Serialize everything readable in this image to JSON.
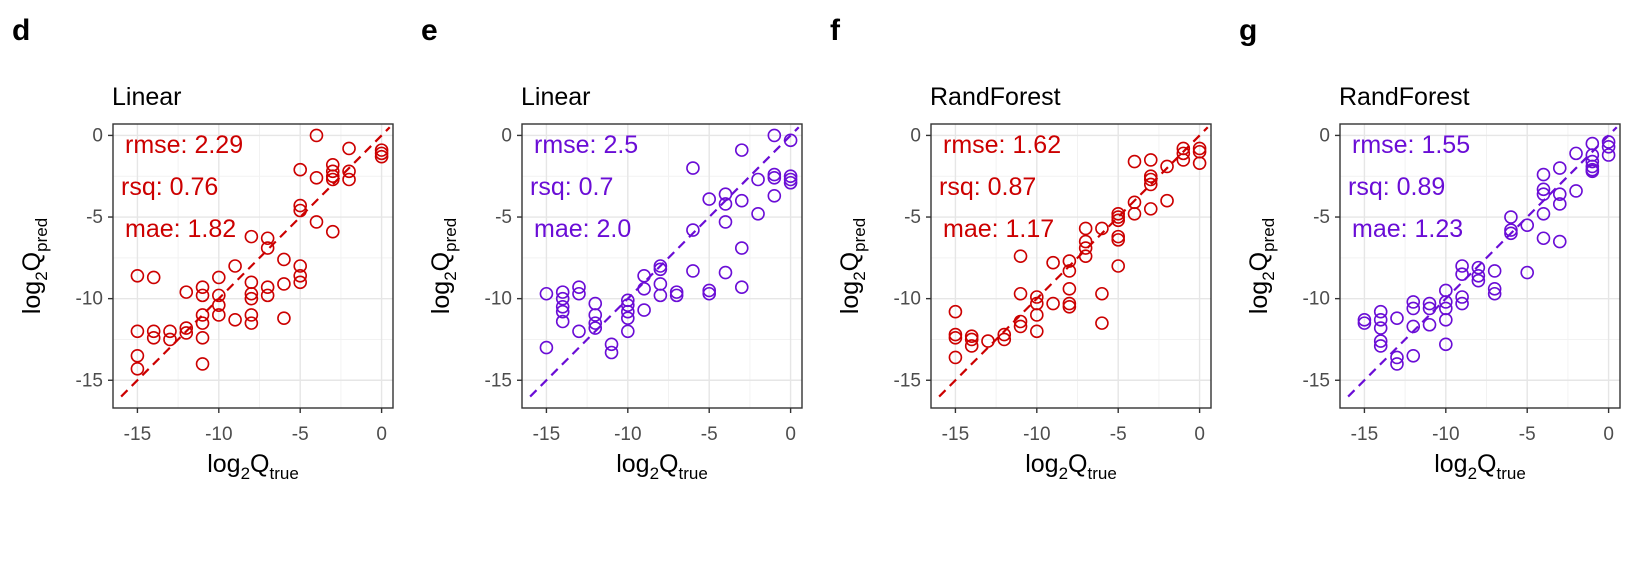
{
  "chart_data": [
    {
      "type": "scatter",
      "panel_label": "d",
      "title": "Linear",
      "xlabel": "log2Qtrue",
      "ylabel": "log2Qpred",
      "xlim": [
        -16.5,
        0.7
      ],
      "ylim": [
        -16.7,
        0.7
      ],
      "xticks": [
        -15,
        -10,
        -5,
        0
      ],
      "yticks": [
        0,
        -5,
        -10,
        -15
      ],
      "grid": true,
      "color": "#CC0000",
      "reference_line": {
        "style": "dashed",
        "x": [
          -16,
          0.5
        ],
        "y": [
          -16,
          0.5
        ]
      },
      "stats": [
        "rmse: 2.29",
        "rsq: 0.76",
        "mae: 1.82"
      ],
      "points": [
        [
          -15,
          -8.6
        ],
        [
          -15,
          -12
        ],
        [
          -15,
          -13.5
        ],
        [
          -15,
          -14.3
        ],
        [
          -14,
          -8.7
        ],
        [
          -14,
          -12
        ],
        [
          -14,
          -12.4
        ],
        [
          -13,
          -12
        ],
        [
          -13,
          -12.5
        ],
        [
          -12,
          -9.6
        ],
        [
          -12,
          -11.8
        ],
        [
          -12,
          -12.1
        ],
        [
          -11,
          -9.3
        ],
        [
          -11,
          -9.8
        ],
        [
          -11,
          -11
        ],
        [
          -11,
          -11.5
        ],
        [
          -11,
          -12.4
        ],
        [
          -11,
          -14
        ],
        [
          -10,
          -8.7
        ],
        [
          -10,
          -9.8
        ],
        [
          -10,
          -10.4
        ],
        [
          -10,
          -11
        ],
        [
          -9,
          -8
        ],
        [
          -9,
          -11.3
        ],
        [
          -8,
          -9
        ],
        [
          -8,
          -9.7
        ],
        [
          -8,
          -10
        ],
        [
          -8,
          -11
        ],
        [
          -8,
          -11.5
        ],
        [
          -8,
          -6.2
        ],
        [
          -7,
          -6.3
        ],
        [
          -7,
          -6.9
        ],
        [
          -7,
          -9.3
        ],
        [
          -7,
          -9.8
        ],
        [
          -6,
          -7.6
        ],
        [
          -6,
          -9.1
        ],
        [
          -6,
          -11.2
        ],
        [
          -5,
          -2.1
        ],
        [
          -5,
          -4.3
        ],
        [
          -5,
          -4.6
        ],
        [
          -5,
          -8
        ],
        [
          -5,
          -8.6
        ],
        [
          -5,
          -9
        ],
        [
          -4,
          0
        ],
        [
          -4,
          -2.6
        ],
        [
          -4,
          -5.3
        ],
        [
          -3,
          -1.8
        ],
        [
          -3,
          -2.2
        ],
        [
          -3,
          -2.5
        ],
        [
          -3,
          -2.7
        ],
        [
          -3,
          -5.9
        ],
        [
          -2,
          -0.8
        ],
        [
          -2,
          -2.2
        ],
        [
          -2,
          -2.7
        ],
        [
          0,
          -0.9
        ],
        [
          0,
          -1.1
        ],
        [
          0,
          -1.3
        ]
      ]
    },
    {
      "type": "scatter",
      "panel_label": "e",
      "title": "Linear",
      "xlabel": "log2Qtrue",
      "ylabel": "log2Qpred",
      "xlim": [
        -16.5,
        0.7
      ],
      "ylim": [
        -16.7,
        0.7
      ],
      "xticks": [
        -15,
        -10,
        -5,
        0
      ],
      "yticks": [
        0,
        -5,
        -10,
        -15
      ],
      "grid": true,
      "color": "#6A0DD6",
      "reference_line": {
        "style": "dashed",
        "x": [
          -16,
          0.5
        ],
        "y": [
          -16,
          0.5
        ]
      },
      "stats": [
        "rmse: 2.5",
        "rsq: 0.7",
        "mae: 2.0"
      ],
      "points": [
        [
          -15,
          -9.7
        ],
        [
          -15,
          -13
        ],
        [
          -14,
          -9.6
        ],
        [
          -14,
          -10
        ],
        [
          -14,
          -10.5
        ],
        [
          -14,
          -10.8
        ],
        [
          -14,
          -11.4
        ],
        [
          -13,
          -9.3
        ],
        [
          -13,
          -9.7
        ],
        [
          -13,
          -12
        ],
        [
          -12,
          -10.3
        ],
        [
          -12,
          -11
        ],
        [
          -12,
          -11.5
        ],
        [
          -12,
          -11.8
        ],
        [
          -11,
          -12.8
        ],
        [
          -11,
          -13.3
        ],
        [
          -10,
          -10.1
        ],
        [
          -10,
          -10.4
        ],
        [
          -10,
          -10.8
        ],
        [
          -10,
          -11.2
        ],
        [
          -10,
          -12
        ],
        [
          -9,
          -8.6
        ],
        [
          -9,
          -9.4
        ],
        [
          -9,
          -10.7
        ],
        [
          -8,
          -8
        ],
        [
          -8,
          -8.2
        ],
        [
          -8,
          -9.1
        ],
        [
          -8,
          -9.8
        ],
        [
          -7,
          -9.6
        ],
        [
          -7,
          -9.8
        ],
        [
          -6,
          -2
        ],
        [
          -6,
          -5.8
        ],
        [
          -6,
          -8.3
        ],
        [
          -5,
          -3.9
        ],
        [
          -5,
          -9.5
        ],
        [
          -5,
          -9.7
        ],
        [
          -4,
          -3.6
        ],
        [
          -4,
          -4.2
        ],
        [
          -4,
          -5.3
        ],
        [
          -4,
          -8.4
        ],
        [
          -3,
          -0.9
        ],
        [
          -3,
          -4
        ],
        [
          -3,
          -6.9
        ],
        [
          -3,
          -9.3
        ],
        [
          -2,
          -2.7
        ],
        [
          -2,
          -4.8
        ],
        [
          -1,
          0
        ],
        [
          -1,
          -2.4
        ],
        [
          -1,
          -2.6
        ],
        [
          -1,
          -3.7
        ],
        [
          0,
          -0.3
        ],
        [
          0,
          -2.5
        ],
        [
          0,
          -2.7
        ],
        [
          0,
          -2.9
        ]
      ]
    },
    {
      "type": "scatter",
      "panel_label": "f",
      "title": "RandForest",
      "xlabel": "log2Qtrue",
      "ylabel": "log2Qpred",
      "xlim": [
        -16.5,
        0.7
      ],
      "ylim": [
        -16.7,
        0.7
      ],
      "xticks": [
        -15,
        -10,
        -5,
        0
      ],
      "yticks": [
        0,
        -5,
        -10,
        -15
      ],
      "grid": true,
      "color": "#CC0000",
      "reference_line": {
        "style": "dashed",
        "x": [
          -16,
          0.5
        ],
        "y": [
          -16,
          0.5
        ]
      },
      "stats": [
        "rmse: 1.62",
        "rsq: 0.87",
        "mae: 1.17"
      ],
      "points": [
        [
          -15,
          -10.8
        ],
        [
          -15,
          -12.2
        ],
        [
          -15,
          -12.4
        ],
        [
          -15,
          -13.6
        ],
        [
          -14,
          -12.3
        ],
        [
          -14,
          -12.5
        ],
        [
          -14,
          -12.9
        ],
        [
          -13,
          -12.6
        ],
        [
          -12,
          -12.2
        ],
        [
          -12,
          -12.5
        ],
        [
          -11,
          -7.4
        ],
        [
          -11,
          -9.7
        ],
        [
          -11,
          -11.4
        ],
        [
          -11,
          -11.7
        ],
        [
          -10,
          -9.9
        ],
        [
          -10,
          -10.3
        ],
        [
          -10,
          -11
        ],
        [
          -10,
          -12
        ],
        [
          -9,
          -7.8
        ],
        [
          -9,
          -10.3
        ],
        [
          -8,
          -7.7
        ],
        [
          -8,
          -8.3
        ],
        [
          -8,
          -9.4
        ],
        [
          -8,
          -10.3
        ],
        [
          -8,
          -10.5
        ],
        [
          -7,
          -5.7
        ],
        [
          -7,
          -6.5
        ],
        [
          -7,
          -6.9
        ],
        [
          -7,
          -7.4
        ],
        [
          -6,
          -5.7
        ],
        [
          -6,
          -9.7
        ],
        [
          -6,
          -11.5
        ],
        [
          -5,
          -4.8
        ],
        [
          -5,
          -5
        ],
        [
          -5,
          -5.2
        ],
        [
          -5,
          -6.2
        ],
        [
          -5,
          -6.4
        ],
        [
          -5,
          -8
        ],
        [
          -4,
          -1.6
        ],
        [
          -4,
          -4.1
        ],
        [
          -4,
          -4.8
        ],
        [
          -3,
          -1.5
        ],
        [
          -3,
          -2.5
        ],
        [
          -3,
          -2.7
        ],
        [
          -3,
          -3
        ],
        [
          -3,
          -4.5
        ],
        [
          -2,
          -1.9
        ],
        [
          -2,
          -4
        ],
        [
          -1,
          -0.8
        ],
        [
          -1,
          -1.1
        ],
        [
          -1,
          -1.5
        ],
        [
          0,
          -0.8
        ],
        [
          0,
          -1
        ],
        [
          0,
          -1.7
        ]
      ]
    },
    {
      "type": "scatter",
      "panel_label": "g",
      "title": "RandForest",
      "xlabel": "log2Qtrue",
      "ylabel": "log2Qpred",
      "xlim": [
        -16.5,
        0.7
      ],
      "ylim": [
        -16.7,
        0.7
      ],
      "xticks": [
        -15,
        -10,
        -5,
        0
      ],
      "yticks": [
        0,
        -5,
        -10,
        -15
      ],
      "grid": true,
      "color": "#6A0DD6",
      "reference_line": {
        "style": "dashed",
        "x": [
          -16,
          0.5
        ],
        "y": [
          -16,
          0.5
        ]
      },
      "stats": [
        "rmse: 1.55",
        "rsq: 0.89",
        "mae: 1.23"
      ],
      "points": [
        [
          -15,
          -11.3
        ],
        [
          -15,
          -11.5
        ],
        [
          -14,
          -10.8
        ],
        [
          -14,
          -11.3
        ],
        [
          -14,
          -11.8
        ],
        [
          -14,
          -12.6
        ],
        [
          -14,
          -12.9
        ],
        [
          -13,
          -11.2
        ],
        [
          -13,
          -13.6
        ],
        [
          -13,
          -14
        ],
        [
          -12,
          -10.2
        ],
        [
          -12,
          -10.6
        ],
        [
          -12,
          -11.7
        ],
        [
          -12,
          -13.5
        ],
        [
          -11,
          -10.3
        ],
        [
          -11,
          -10.6
        ],
        [
          -11,
          -11.6
        ],
        [
          -10,
          -9.5
        ],
        [
          -10,
          -10.2
        ],
        [
          -10,
          -10.6
        ],
        [
          -10,
          -11.3
        ],
        [
          -10,
          -12.8
        ],
        [
          -9,
          -8
        ],
        [
          -9,
          -8.5
        ],
        [
          -9,
          -9.9
        ],
        [
          -9,
          -10.3
        ],
        [
          -8,
          -8.1
        ],
        [
          -8,
          -8.6
        ],
        [
          -8,
          -8.9
        ],
        [
          -7,
          -9.4
        ],
        [
          -7,
          -9.7
        ],
        [
          -7,
          -8.3
        ],
        [
          -6,
          -5
        ],
        [
          -6,
          -5.8
        ],
        [
          -6,
          -6
        ],
        [
          -5,
          -5.5
        ],
        [
          -5,
          -8.4
        ],
        [
          -4,
          -2.4
        ],
        [
          -4,
          -3.3
        ],
        [
          -4,
          -3.6
        ],
        [
          -4,
          -4.8
        ],
        [
          -4,
          -6.3
        ],
        [
          -3,
          -2
        ],
        [
          -3,
          -3.6
        ],
        [
          -3,
          -4.2
        ],
        [
          -3,
          -6.5
        ],
        [
          -2,
          -1.1
        ],
        [
          -2,
          -3.4
        ],
        [
          -1,
          -0.5
        ],
        [
          -1,
          -1.2
        ],
        [
          -1,
          -1.6
        ],
        [
          -1,
          -1.9
        ],
        [
          -1,
          -2.1
        ],
        [
          -1,
          -2.2
        ],
        [
          0,
          -0.4
        ],
        [
          0,
          -0.7
        ],
        [
          0,
          -1.2
        ]
      ]
    }
  ]
}
